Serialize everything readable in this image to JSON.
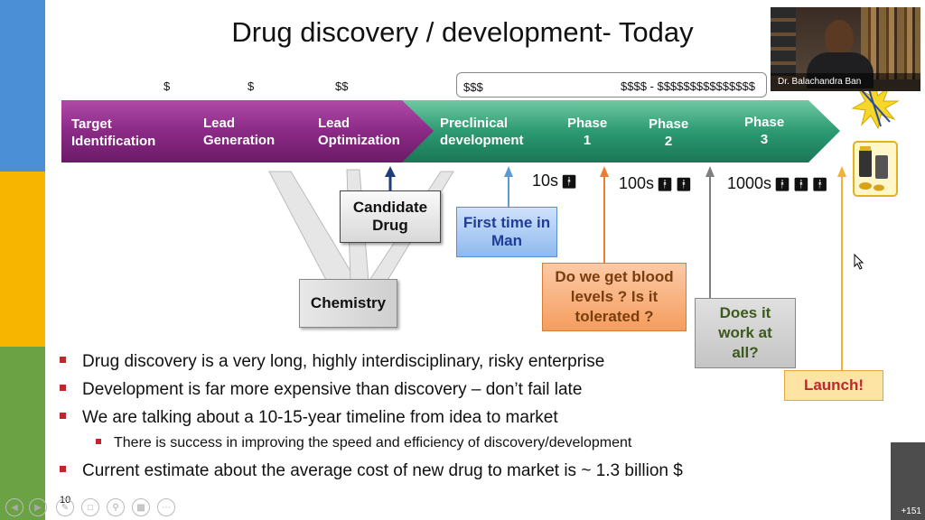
{
  "slide": {
    "title": "Drug discovery / development- Today",
    "page_number": "10"
  },
  "costs": {
    "c1": "$",
    "c2": "$",
    "c3": "$$",
    "c4": "$$$",
    "c5": "$$$$ -  $$$$$$$$$$$$$$$"
  },
  "stages": {
    "target": [
      "Target",
      "Identification"
    ],
    "lead_gen": [
      "Lead",
      "Generation"
    ],
    "lead_opt": [
      "Lead",
      "Optimization"
    ],
    "preclinical": [
      "Preclinical",
      "development"
    ],
    "phase1": [
      "Phase",
      "1"
    ],
    "phase2": [
      "Phase",
      "2"
    ],
    "phase3": [
      "Phase",
      "3"
    ]
  },
  "subjects": {
    "p1": "10s",
    "p2": "100s",
    "p3": "1000s"
  },
  "callouts": {
    "candidate": "Candidate Drug",
    "chemistry": "Chemistry",
    "first_time": "First time in Man",
    "blood_levels": "Do we get blood levels ? Is it tolerated ?",
    "does_work": "Does it work at all?",
    "launch": "Launch!"
  },
  "bullets": [
    "Drug discovery is a very long, highly interdisciplinary, risky enterprise",
    "Development is far more expensive than discovery – don’t fail late",
    "We are talking about a 10-15-year timeline from idea to market",
    "There is success in improving the speed and efficiency of discovery/development",
    "Current estimate about the average cost of new drug to market is ~ 1.3 billion $"
  ],
  "video": {
    "participant_name": "Dr. Balachandra Ban",
    "participant_count": "+151"
  },
  "colors": {
    "purple": "#8b2a86",
    "green": "#1e8c66",
    "orange_box": "#f7a46b",
    "blue_box": "#8fb9ef",
    "grey_box": "#c8c8c8",
    "launch_box": "#fdd27a"
  }
}
